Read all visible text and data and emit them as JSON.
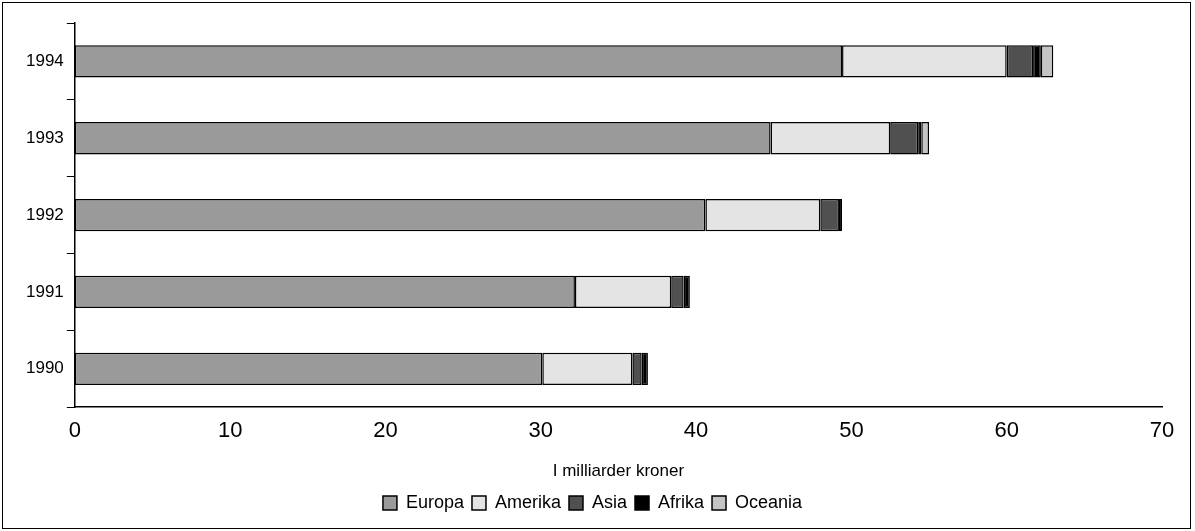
{
  "chart_data": {
    "type": "bar",
    "orientation": "horizontal",
    "stacked": true,
    "categories": [
      "1994",
      "1993",
      "1992",
      "1991",
      "1990"
    ],
    "series": [
      {
        "name": "Europa",
        "color": "#9a9a9a",
        "values": [
          49.4,
          44.8,
          40.6,
          32.2,
          30.1
        ]
      },
      {
        "name": "Amerika",
        "color": "#e4e4e4",
        "values": [
          10.6,
          7.7,
          7.4,
          6.2,
          5.8
        ]
      },
      {
        "name": "Asia",
        "color": "#505050",
        "values": [
          1.7,
          1.8,
          1.2,
          0.8,
          0.6
        ]
      },
      {
        "name": "Afrika",
        "color": "#000000",
        "values": [
          0.5,
          0.2,
          0.2,
          0.4,
          0.4
        ]
      },
      {
        "name": "Oceania",
        "color": "#c4c4c4",
        "values": [
          0.8,
          0.5,
          null,
          null,
          null
        ]
      }
    ],
    "xlim": [
      0,
      70
    ],
    "xticks": [
      0,
      10,
      20,
      30,
      40,
      50,
      60,
      70
    ],
    "xlabel": "I milliarder kroner",
    "grid": false,
    "legend": "bottom"
  }
}
